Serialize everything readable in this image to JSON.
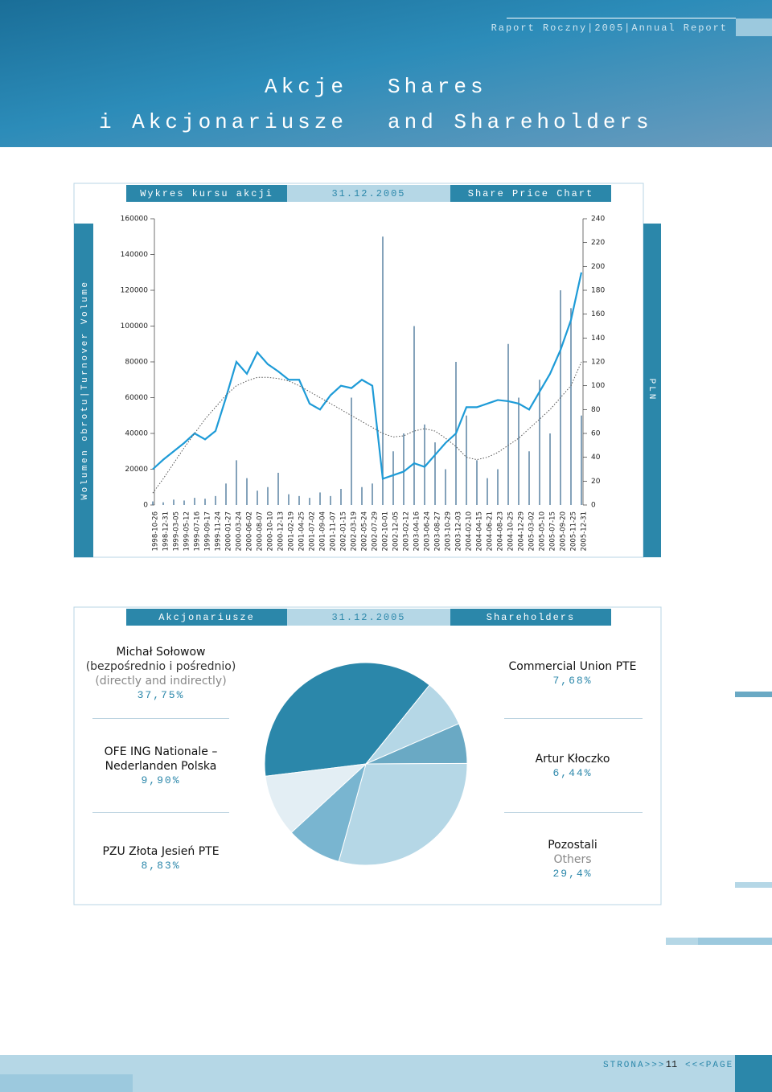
{
  "header": {
    "running": "Raport Roczny|2005|Annual Report",
    "title_pl": [
      "Akcje",
      "i Akcjonariusze"
    ],
    "title_en": [
      "Shares",
      "and Shareholders"
    ]
  },
  "chart_data": [
    {
      "type": "line",
      "header": [
        "Wykres kursu akcji",
        "31.12.2005",
        "Share Price Chart"
      ],
      "ylabel": "Wolumen obrotu|Turnover Volume",
      "y2label": "PLN",
      "categories": [
        "1998-10-26",
        "1998-12-31",
        "1999-03-05",
        "1999-05-12",
        "1999-07-16",
        "1999-09-17",
        "1999-11-24",
        "2000-01-27",
        "2000-03-24",
        "2000-06-02",
        "2000-08-07",
        "2000-10-10",
        "2000-12-13",
        "2001-02-19",
        "2001-04-25",
        "2001-07-02",
        "2001-09-04",
        "2001-11-07",
        "2002-01-15",
        "2002-03-19",
        "2002-05-24",
        "2002-07-29",
        "2002-10-01",
        "2002-12-05",
        "2003-02-12",
        "2003-04-16",
        "2003-06-24",
        "2003-08-27",
        "2003-10-29",
        "2003-12-03",
        "2004-02-10",
        "2004-04-15",
        "2004-06-21",
        "2004-08-23",
        "2004-10-25",
        "2004-12-29",
        "2005-03-02",
        "2005-05-10",
        "2005-07-15",
        "2005-09-20",
        "2005-11-25",
        "2005-12-31"
      ],
      "series": [
        {
          "style": "bar",
          "color": "#3e6f93",
          "values": [
            2000,
            1500,
            3000,
            2500,
            4000,
            3500,
            5000,
            12000,
            25000,
            15000,
            8000,
            10000,
            18000,
            6000,
            5000,
            4000,
            7000,
            5000,
            9000,
            60000,
            10000,
            12000,
            150000,
            30000,
            40000,
            100000,
            45000,
            35000,
            20000,
            80000,
            50000,
            25000,
            15000,
            20000,
            90000,
            60000,
            30000,
            70000,
            40000,
            120000,
            110000,
            50000
          ]
        },
        {
          "style": "line",
          "axis": "y2",
          "color": "#1e9bd7",
          "values": [
            30,
            38,
            45,
            52,
            60,
            55,
            62,
            90,
            120,
            110,
            128,
            118,
            112,
            105,
            105,
            85,
            80,
            92,
            100,
            98,
            105,
            100,
            22,
            25,
            28,
            35,
            32,
            42,
            52,
            60,
            82,
            82,
            85,
            88,
            87,
            85,
            80,
            95,
            110,
            130,
            155,
            195
          ]
        },
        {
          "style": "dotted",
          "axis": "y2",
          "color": "#555555",
          "values": [
            10,
            22,
            35,
            48,
            60,
            72,
            82,
            92,
            100,
            104,
            107,
            107,
            106,
            104,
            100,
            95,
            90,
            85,
            80,
            75,
            70,
            65,
            60,
            57,
            58,
            62,
            64,
            62,
            56,
            49,
            40,
            38,
            40,
            44,
            50,
            56,
            64,
            72,
            80,
            90,
            100,
            120
          ]
        }
      ],
      "ylim": [
        0,
        160000
      ],
      "yticks": [
        0,
        20000,
        40000,
        60000,
        80000,
        100000,
        120000,
        140000,
        160000
      ],
      "y2lim": [
        0,
        240
      ],
      "y2ticks": [
        0,
        20,
        40,
        60,
        80,
        100,
        120,
        140,
        160,
        180,
        200,
        220,
        240
      ]
    },
    {
      "type": "pie",
      "header": [
        "Akcjonariusze",
        "31.12.2005",
        "Shareholders"
      ],
      "categories": [
        "Michał Sołowow",
        "Commercial Union PTE",
        "Artur Kłoczko",
        "Pozostali",
        "PZU Złota Jesień PTE",
        "OFE ING Nationale – Nederlanden Polska"
      ],
      "details": [
        [
          "(bezpośrednio i pośrednio)",
          "(directly and indirectly)"
        ],
        [],
        [],
        [
          "Others"
        ],
        [],
        []
      ],
      "values": [
        37.75,
        7.68,
        6.44,
        29.4,
        8.83,
        9.9
      ],
      "value_labels": [
        "37,75%",
        "7,68%",
        "6,44%",
        "29,4%",
        "8,83%",
        "9,90%"
      ],
      "colors": [
        "#2b87aa",
        "#b5d7e6",
        "#6aa9c4",
        "#b5d7e6",
        "#79b5d0",
        "#e3eef4"
      ]
    }
  ],
  "footer": {
    "left": "STRONA>>>",
    "page": "11",
    "right": "<<<PAGE"
  }
}
